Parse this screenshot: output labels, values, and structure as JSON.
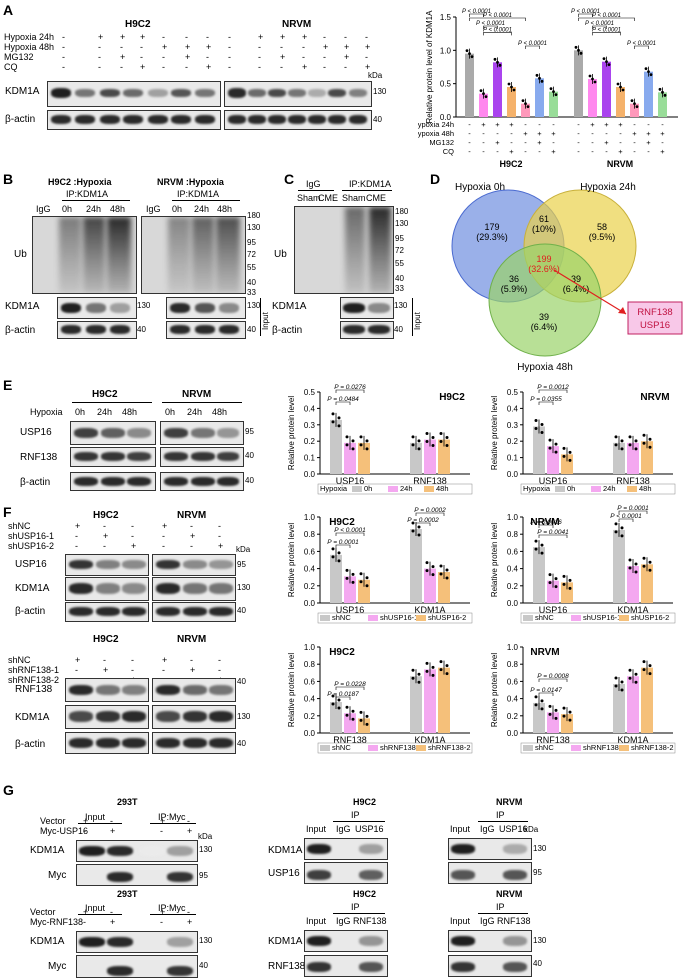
{
  "panelA": {
    "label": "A",
    "h9c2": "H9C2",
    "nrvm": "NRVM",
    "conds": [
      "Hypoxia 24h",
      "Hypoxia 48h",
      "MG132",
      "CQ"
    ],
    "signs": [
      [
        "-",
        "+",
        "+",
        "+",
        "-",
        "-",
        "-"
      ],
      [
        "-",
        "-",
        "-",
        "-",
        "+",
        "+",
        "+"
      ],
      [
        "-",
        "-",
        "+",
        "-",
        "-",
        "+",
        "-"
      ],
      [
        "-",
        "-",
        "-",
        "+",
        "-",
        "-",
        "+"
      ]
    ],
    "kda": "kDa",
    "rows": [
      "KDM1A",
      "β-actin"
    ],
    "mw": [
      "130",
      "40"
    ],
    "chart": {
      "ylabel": "Relative protein level of KDM1A",
      "yticks": [
        "0.0",
        "0.5",
        "1.0",
        "1.5"
      ],
      "groups": [
        "H9C2",
        "NRVM"
      ],
      "pvals": [
        "P < 0.0001",
        "P < 0.0001",
        "P < 0.0001",
        "P < 0.0001",
        "P < 0.0001",
        "P < 0.0001",
        "P < 0.0001",
        "P < 0.0001",
        "P < 0.0001",
        "P < 0.0001"
      ],
      "cond_labels": [
        "Hypoxia 24h",
        "Hypoxia 48h",
        "MG132",
        "CQ"
      ]
    }
  },
  "panelB": {
    "label": "B",
    "h9c2": "H9C2 :Hypoxia",
    "nrvm": "NRVM :Hypoxia",
    "ip": "IP:KDM1A",
    "igg": "IgG",
    "times": [
      "0h",
      "24h",
      "48h"
    ],
    "ub": "Ub",
    "kdm1a": "KDM1A",
    "actin": "β-actin",
    "input": "Input",
    "mw_ub": [
      "180",
      "130",
      "95",
      "72",
      "55",
      "40",
      "33"
    ],
    "mw": [
      "130",
      "40"
    ]
  },
  "panelC": {
    "label": "C",
    "igg": "IgG",
    "ip": "IP:KDM1A",
    "lanes": [
      "Sham",
      "CME",
      "Sham",
      "CME"
    ],
    "ub": "Ub",
    "kdm1a": "KDM1A",
    "actin": "β-actin",
    "input": "Input",
    "mw_ub": [
      "180",
      "130",
      "95",
      "72",
      "55",
      "40",
      "33"
    ],
    "mw": [
      "130",
      "40"
    ]
  },
  "panelD": {
    "label": "D",
    "sets": [
      "Hypoxia 0h",
      "Hypoxia 24h",
      "Hypoxia 48h"
    ],
    "regions": [
      {
        "n": "179",
        "p": "(29.3%)"
      },
      {
        "n": "61",
        "p": "(10%)"
      },
      {
        "n": "58",
        "p": "(9.5%)"
      },
      {
        "n": "199",
        "p": "(32.6%)"
      },
      {
        "n": "36",
        "p": "(5.9%)"
      },
      {
        "n": "39",
        "p": "(6.4%)"
      },
      {
        "n": "39",
        "p": "(6.4%)"
      }
    ],
    "genes": [
      "RNF138",
      "USP16"
    ]
  },
  "panelE": {
    "label": "E",
    "h9c2": "H9C2",
    "nrvm": "NRVM",
    "hypoxia": "Hypoxia",
    "times": [
      "0h",
      "24h",
      "48h"
    ],
    "rows": [
      "USP16",
      "RNF138",
      "β-actin"
    ],
    "mw": [
      "95",
      "40",
      "40"
    ],
    "chart1": {
      "title": "H9C2",
      "pvals": [
        "P = 0.0276",
        "P = 0.0484"
      ]
    },
    "chart2": {
      "title": "NRVM",
      "pvals": [
        "P = 0.0012",
        "P = 0.0355"
      ]
    },
    "ylabel": "Relative protein level",
    "yticks": [
      "0.0",
      "0.1",
      "0.2",
      "0.3",
      "0.4",
      "0.5"
    ],
    "categories": [
      "USP16",
      "RNF138"
    ],
    "legend_title": "Hypoxia",
    "legend": [
      "0h",
      "24h",
      "48h"
    ]
  },
  "panelF": {
    "label": "F",
    "h9c2": "H9C2",
    "nrvm": "NRVM",
    "kda": "kDa",
    "top": {
      "conds": [
        "shNC",
        "shUSP16-1",
        "shUSP16-2"
      ],
      "rows": [
        "USP16",
        "KDM1A",
        "β-actin"
      ],
      "mw": [
        "95",
        "130",
        "40"
      ]
    },
    "bottom": {
      "conds": [
        "shNC",
        "shRNF138-1",
        "shRNF138-2"
      ],
      "rows": [
        "RNF138",
        "KDM1A",
        "β-actin"
      ],
      "mw": [
        "40",
        "130",
        "40"
      ]
    },
    "signs": [
      [
        "+",
        "-",
        "-"
      ],
      [
        "-",
        "+",
        "-"
      ],
      [
        "-",
        "-",
        "+"
      ]
    ],
    "chartTopL": {
      "title": "H9C2",
      "pvals": [
        "P < 0.0001",
        "P = 0.0001",
        "P = 0.0002",
        "P = 0.0002"
      ]
    },
    "chartTopR": {
      "title": "NRVM",
      "pvals": [
        "P = 0.0016",
        "P = 0.0041",
        "P = 0.0001",
        "P < 0.0001"
      ]
    },
    "chartBotL": {
      "title": "H9C2",
      "pvals": [
        "P = 0.0228",
        "P = 0.0187"
      ]
    },
    "chartBotR": {
      "title": "NRVM",
      "pvals": [
        "P = 0.0008",
        "P = 0.0147"
      ]
    },
    "ylabel": "Relative protein level",
    "yticks_top": [
      "0.0",
      "0.2",
      "0.4",
      "0.6",
      "0.8",
      "1.0"
    ],
    "yticks_bot": [
      "0.0",
      "0.2",
      "0.4",
      "0.6",
      "0.8",
      "1.0"
    ],
    "cats_top": [
      "USP16",
      "KDM1A"
    ],
    "cats_bot": [
      "RNF138",
      "KDM1A"
    ],
    "legend_top": [
      "shNC",
      "shUSP16-1",
      "shUSP16-2"
    ],
    "legend_bot": [
      "shNC",
      "shRNF138-1",
      "shRNF138-2"
    ]
  },
  "panelG": {
    "label": "G",
    "t293": "293T",
    "input": "Input",
    "ipmyc": "IP:Myc",
    "kda": "kDa",
    "top": {
      "conds": [
        "Vector",
        "Myc-USP16"
      ],
      "rows": [
        "KDM1A",
        "Myc"
      ],
      "mw": [
        "130",
        "95"
      ]
    },
    "bottom": {
      "conds": [
        "Vector",
        "Myc-RNF138"
      ],
      "rows": [
        "KDM1A",
        "Myc"
      ],
      "mw": [
        "130",
        "40"
      ]
    },
    "signs": [
      [
        "+",
        "-",
        "+",
        "-"
      ],
      [
        "-",
        "+",
        "-",
        "+"
      ]
    ],
    "h9c2": "H9C2",
    "nrvm": "NRVM",
    "ip": "IP",
    "lanesTop": [
      "Input",
      "IgG",
      "USP16"
    ],
    "lanesBot": [
      "Input",
      "IgG",
      "RNF138"
    ],
    "rowsTop": [
      "KDM1A",
      "USP16"
    ],
    "mwTop": [
      "130",
      "95"
    ],
    "rowsBot": [
      "KDM1A",
      "RNF138"
    ],
    "mwBot": [
      "130",
      "40"
    ]
  },
  "chart_data": [
    {
      "type": "bar",
      "title": "",
      "ylabel": "Relative protein level of KDM1A",
      "ylim": [
        0,
        1.5
      ],
      "categories": [
        "H9C2 ctrl",
        "H9C2 H24",
        "H9C2 H24+MG132",
        "H9C2 H24+CQ",
        "H9C2 H48",
        "H9C2 H48+MG132",
        "H9C2 H48+CQ",
        "NRVM ctrl",
        "NRVM H24",
        "NRVM H24+MG132",
        "NRVM H24+CQ",
        "NRVM H48",
        "NRVM H48+MG132",
        "NRVM H48+CQ"
      ],
      "values": [
        0.95,
        0.35,
        0.82,
        0.45,
        0.2,
        0.58,
        0.38,
        1.0,
        0.57,
        0.83,
        0.45,
        0.2,
        0.68,
        0.37
      ],
      "colors": [
        "#aaaaaa",
        "#ff88ee",
        "#aa44ee",
        "#f5b26b",
        "#ff99bb",
        "#88aaee",
        "#99dd99",
        "#aaaaaa",
        "#ff88ee",
        "#aa44ee",
        "#f5b26b",
        "#ff99bb",
        "#88aaee",
        "#99dd99"
      ]
    },
    {
      "type": "bar",
      "title": "H9C2",
      "ylabel": "Relative protein level",
      "ylim": [
        0,
        0.5
      ],
      "categories": [
        "USP16",
        "RNF138"
      ],
      "series": [
        {
          "name": "0h",
          "values": [
            0.33,
            0.19
          ]
        },
        {
          "name": "24h",
          "values": [
            0.19,
            0.21
          ]
        },
        {
          "name": "48h",
          "values": [
            0.19,
            0.21
          ]
        }
      ]
    },
    {
      "type": "bar",
      "title": "NRVM",
      "ylabel": "Relative protein level",
      "ylim": [
        0,
        0.5
      ],
      "categories": [
        "USP16",
        "RNF138"
      ],
      "series": [
        {
          "name": "0h",
          "values": [
            0.29,
            0.19
          ]
        },
        {
          "name": "24h",
          "values": [
            0.17,
            0.19
          ]
        },
        {
          "name": "48h",
          "values": [
            0.12,
            0.2
          ]
        }
      ]
    },
    {
      "type": "bar",
      "title": "H9C2",
      "ylabel": "Relative protein level",
      "ylim": [
        0,
        1.0
      ],
      "categories": [
        "USP16",
        "KDM1A"
      ],
      "series": [
        {
          "name": "shNC",
          "values": [
            0.56,
            0.86
          ]
        },
        {
          "name": "shUSP16-1",
          "values": [
            0.31,
            0.4
          ]
        },
        {
          "name": "shUSP16-2",
          "values": [
            0.27,
            0.36
          ]
        }
      ]
    },
    {
      "type": "bar",
      "title": "NRVM",
      "ylabel": "Relative protein level",
      "ylim": [
        0,
        1.0
      ],
      "categories": [
        "USP16",
        "KDM1A"
      ],
      "series": [
        {
          "name": "shNC",
          "values": [
            0.65,
            0.85
          ]
        },
        {
          "name": "shUSP16-1",
          "values": [
            0.26,
            0.43
          ]
        },
        {
          "name": "shUSP16-2",
          "values": [
            0.24,
            0.45
          ]
        }
      ]
    },
    {
      "type": "bar",
      "title": "H9C2",
      "ylabel": "Relative protein level",
      "ylim": [
        0,
        1.0
      ],
      "categories": [
        "RNF138",
        "KDM1A"
      ],
      "series": [
        {
          "name": "shNC",
          "values": [
            0.36,
            0.66
          ]
        },
        {
          "name": "shRNF138-1",
          "values": [
            0.23,
            0.74
          ]
        },
        {
          "name": "shRNF138-2",
          "values": [
            0.17,
            0.76
          ]
        }
      ]
    },
    {
      "type": "bar",
      "title": "NRVM",
      "ylabel": "Relative protein level",
      "ylim": [
        0,
        1.0
      ],
      "categories": [
        "RNF138",
        "KDM1A"
      ],
      "series": [
        {
          "name": "shNC",
          "values": [
            0.35,
            0.57
          ]
        },
        {
          "name": "shRNF138-1",
          "values": [
            0.24,
            0.66
          ]
        },
        {
          "name": "shRNF138-2",
          "values": [
            0.22,
            0.76
          ]
        }
      ]
    }
  ]
}
